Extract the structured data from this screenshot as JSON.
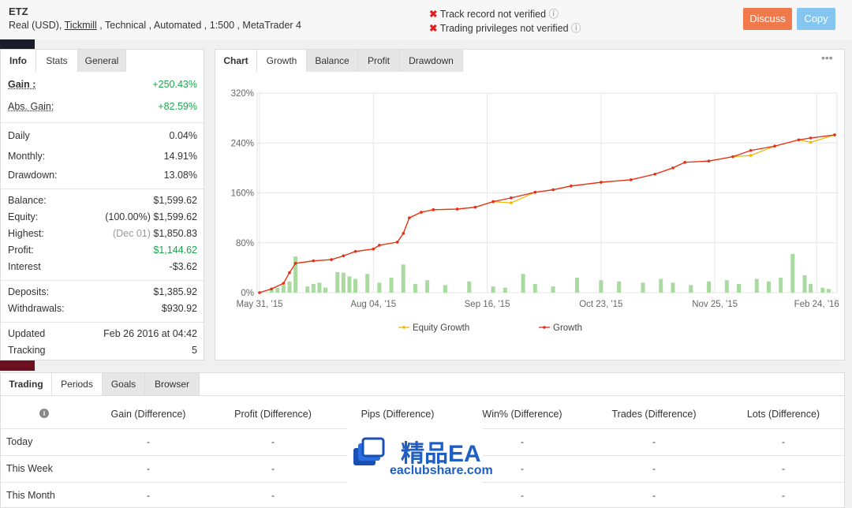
{
  "header": {
    "title": "ETZ",
    "details": [
      "Real (USD), ",
      "Tickmill",
      " , Technical , Automated , 1:500 , MetaTrader 4"
    ],
    "warnings": [
      "Track record not verified",
      "Trading privileges not verified"
    ],
    "buttons": [
      "Discuss",
      "Copy"
    ]
  },
  "stats_panel": {
    "tabs": [
      "Info",
      "Stats",
      "General"
    ],
    "groups": [
      [
        {
          "label": "Gain :",
          "value": "+250.43%"
        },
        {
          "label": "Abs. Gain:",
          "value": "+82.59%"
        }
      ],
      [
        {
          "label": "Daily",
          "value": "0.04%"
        },
        {
          "label": "Monthly:",
          "value": "14.91%"
        },
        {
          "label": "Drawdown:",
          "value": "13.08%"
        }
      ],
      [
        {
          "label": "Balance:",
          "value": "$1,599.62"
        },
        {
          "label": "Equity:",
          "value": "(100.00%) $1,599.62"
        },
        {
          "label": "Highest:",
          "note": "(Dec 01)",
          "value": "$1,850.83"
        },
        {
          "label": "Profit:",
          "value": "$1,144.62"
        },
        {
          "label": "Interest",
          "value": "-$3.62"
        }
      ],
      [
        {
          "label": "Deposits:",
          "value": "$1,385.92"
        },
        {
          "label": "Withdrawals:",
          "value": "$930.92"
        }
      ],
      [
        {
          "label": "Updated",
          "value": "Feb 26 2016 at 04:42"
        },
        {
          "label": "Tracking",
          "value": "5"
        }
      ]
    ]
  },
  "chart_panel": {
    "label": "Chart",
    "tabs": [
      "Growth",
      "Balance",
      "Profit",
      "Drawdown"
    ],
    "chart_data": {
      "type": "line",
      "x": [
        0,
        2,
        4,
        5,
        6,
        9,
        12,
        14,
        16,
        19,
        20,
        23,
        24,
        25,
        27,
        29,
        33,
        36,
        39,
        42,
        46,
        49,
        52,
        57,
        62,
        66,
        69,
        71,
        75,
        79,
        82,
        86,
        90,
        92,
        96
      ],
      "series": [
        {
          "name": "Equity Growth",
          "color": "#f5b800",
          "values": [
            0,
            6,
            15,
            32,
            47,
            51,
            53,
            59,
            66,
            70,
            76,
            81,
            95,
            120,
            129,
            133,
            134,
            137,
            146,
            144,
            161,
            165,
            171,
            177,
            181,
            190,
            200,
            209,
            211,
            218,
            220,
            235,
            245,
            241,
            253
          ]
        },
        {
          "name": "Growth",
          "color": "#e52e1e",
          "values": [
            0,
            6,
            15,
            32,
            47,
            51,
            53,
            59,
            66,
            70,
            76,
            81,
            95,
            120,
            129,
            133,
            134,
            137,
            146,
            152,
            161,
            165,
            171,
            177,
            181,
            190,
            200,
            209,
            211,
            218,
            228,
            235,
            245,
            248,
            253
          ]
        }
      ],
      "bars": {
        "color": "#a9dba0",
        "x": [
          2,
          3,
          4,
          5,
          6,
          8,
          9,
          10,
          11,
          13,
          14,
          15,
          16,
          18,
          20,
          22,
          24,
          26,
          28,
          31,
          35,
          39,
          41,
          44,
          46,
          49,
          53,
          57,
          60,
          64,
          67,
          69,
          72,
          75,
          78,
          80,
          83,
          85,
          87,
          89,
          91,
          92,
          94,
          95
        ],
        "values": [
          6,
          8,
          12,
          18,
          58,
          10,
          14,
          16,
          8,
          33,
          32,
          26,
          22,
          30,
          16,
          24,
          45,
          14,
          20,
          12,
          18,
          10,
          8,
          30,
          14,
          10,
          24,
          20,
          18,
          16,
          22,
          16,
          12,
          18,
          20,
          14,
          22,
          18,
          24,
          62,
          28,
          14,
          8,
          6
        ]
      },
      "xlim": [
        0,
        96
      ],
      "ylim": [
        0,
        320
      ],
      "yticks": [
        {
          "value": 0,
          "label": "0%"
        },
        {
          "value": 80,
          "label": "80%"
        },
        {
          "value": 160,
          "label": "160%"
        },
        {
          "value": 240,
          "label": "240%"
        },
        {
          "value": 320,
          "label": "320%"
        }
      ],
      "xticks": [
        {
          "value": 0,
          "label": "May 31, '15"
        },
        {
          "value": 19,
          "label": "Aug 04, '15"
        },
        {
          "value": 38,
          "label": "Sep 16, '15"
        },
        {
          "value": 57,
          "label": "Oct 23, '15"
        },
        {
          "value": 76,
          "label": "Nov 25, '15"
        },
        {
          "value": 93,
          "label": "Feb 24, '16"
        }
      ],
      "grid": true
    }
  },
  "trading_panel": {
    "label": "Trading",
    "tabs": [
      "Periods",
      "Goals",
      "Browser"
    ],
    "columns": [
      "Gain (Difference)",
      "Profit (Difference)",
      "Pips (Difference)",
      "Win% (Difference)",
      "Trades (Difference)",
      "Lots (Difference)"
    ],
    "rows": [
      [
        "Today",
        "-",
        "-",
        "-",
        "-",
        "-",
        "-"
      ],
      [
        "This Week",
        "-",
        "-",
        "-",
        "-",
        "-",
        "-"
      ],
      [
        "This Month",
        "-",
        "-",
        "-",
        "-",
        "-",
        "-"
      ]
    ]
  },
  "watermark": {
    "title": "精品EA",
    "url": "eaclubshare.com"
  }
}
